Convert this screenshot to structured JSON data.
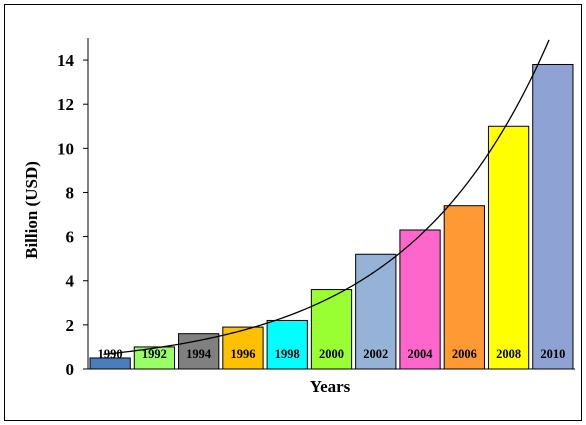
{
  "chart_data": {
    "type": "bar",
    "title": "",
    "xlabel": "Years",
    "ylabel": "Billion (USD)",
    "ylim": [
      0,
      15
    ],
    "yticks": [
      0,
      2,
      4,
      6,
      8,
      10,
      12,
      14
    ],
    "categories": [
      "1990",
      "1992",
      "1994",
      "1996",
      "1998",
      "2000",
      "2002",
      "2004",
      "2006",
      "2008",
      "2010"
    ],
    "values": [
      0.5,
      1.0,
      1.6,
      1.9,
      2.2,
      3.6,
      5.2,
      6.3,
      7.4,
      11.0,
      13.8
    ],
    "bar_colors": [
      "#4a7ebb",
      "#99ff66",
      "#808080",
      "#ffc000",
      "#00ffff",
      "#99ff33",
      "#95b3d7",
      "#ff66cc",
      "#ff9933",
      "#ffff00",
      "#8ea2d4"
    ],
    "trendline": {
      "type": "exponential",
      "color": "#000000"
    },
    "grid": false,
    "legend": "none"
  }
}
